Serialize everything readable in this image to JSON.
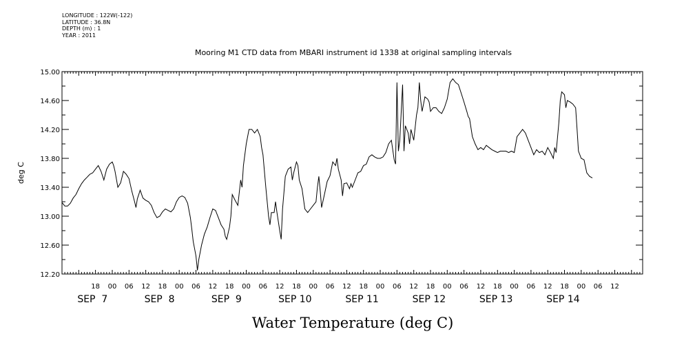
{
  "header": {
    "lines": [
      "LONGITUDE : 122W(-122)",
      "LATITUDE : 36.8N",
      "DEPTH (m) : 1",
      "YEAR : 2011"
    ]
  },
  "chart_data": {
    "type": "line",
    "title": "Mooring M1 CTD data from MBARI instrument id 1338 at original sampling intervals",
    "main_title": "Water Temperature (deg C)",
    "ylabel": "deg C",
    "ylim": [
      12.2,
      15.0
    ],
    "yticks": [
      "12.20",
      "12.60",
      "13.00",
      "13.40",
      "13.80",
      "14.20",
      "14.60",
      "15.00"
    ],
    "x_unit": "hours since SEP 7 00:00",
    "xlim": [
      -18,
      190
    ],
    "hour_ticks": [
      {
        "t": -6,
        "label": "18"
      },
      {
        "t": 0,
        "label": "00"
      },
      {
        "t": 6,
        "label": "06"
      },
      {
        "t": 12,
        "label": "12"
      },
      {
        "t": 18,
        "label": "18"
      },
      {
        "t": 24,
        "label": "00"
      },
      {
        "t": 30,
        "label": "06"
      },
      {
        "t": 36,
        "label": "12"
      },
      {
        "t": 42,
        "label": "18"
      },
      {
        "t": 48,
        "label": "00"
      },
      {
        "t": 54,
        "label": "06"
      },
      {
        "t": 60,
        "label": "12"
      },
      {
        "t": 66,
        "label": "18"
      },
      {
        "t": 72,
        "label": "00"
      },
      {
        "t": 78,
        "label": "06"
      },
      {
        "t": 84,
        "label": "12"
      },
      {
        "t": 90,
        "label": "18"
      },
      {
        "t": 96,
        "label": "00"
      },
      {
        "t": 102,
        "label": "06"
      },
      {
        "t": 108,
        "label": "12"
      },
      {
        "t": 114,
        "label": "18"
      },
      {
        "t": 120,
        "label": "00"
      },
      {
        "t": 126,
        "label": "06"
      },
      {
        "t": 132,
        "label": "12"
      },
      {
        "t": 138,
        "label": "18"
      },
      {
        "t": 144,
        "label": "00"
      },
      {
        "t": 150,
        "label": "06"
      },
      {
        "t": 156,
        "label": "12"
      },
      {
        "t": 162,
        "label": "18"
      },
      {
        "t": 168,
        "label": "00"
      },
      {
        "t": 174,
        "label": "06"
      },
      {
        "t": 180,
        "label": "12"
      }
    ],
    "day_labels": [
      {
        "t": -12,
        "label": "SEP  7"
      },
      {
        "t": 12,
        "label": "SEP  8"
      },
      {
        "t": 36,
        "label": "SEP  9"
      },
      {
        "t": 60,
        "label": "SEP 10"
      },
      {
        "t": 84,
        "label": "SEP 11"
      },
      {
        "t": 108,
        "label": "SEP 12"
      },
      {
        "t": 132,
        "label": "SEP 13"
      },
      {
        "t": 156,
        "label": "SEP 14"
      }
    ],
    "series": [
      {
        "points": [
          [
            -18,
            13.19
          ],
          [
            -17,
            13.14
          ],
          [
            -16,
            13.14
          ],
          [
            -15,
            13.18
          ],
          [
            -14,
            13.25
          ],
          [
            -13,
            13.3
          ],
          [
            -12,
            13.38
          ],
          [
            -11,
            13.45
          ],
          [
            -10,
            13.5
          ],
          [
            -9,
            13.54
          ],
          [
            -8,
            13.58
          ],
          [
            -7,
            13.6
          ],
          [
            -6,
            13.65
          ],
          [
            -5,
            13.7
          ],
          [
            -4,
            13.62
          ],
          [
            -3,
            13.5
          ],
          [
            -2,
            13.65
          ],
          [
            -1,
            13.72
          ],
          [
            0,
            13.75
          ],
          [
            0.5,
            13.7
          ],
          [
            1,
            13.62
          ],
          [
            2,
            13.4
          ],
          [
            3,
            13.46
          ],
          [
            4,
            13.62
          ],
          [
            5,
            13.58
          ],
          [
            6,
            13.52
          ],
          [
            7,
            13.35
          ],
          [
            8,
            13.2
          ],
          [
            8.5,
            13.12
          ],
          [
            9,
            13.24
          ],
          [
            10,
            13.36
          ],
          [
            11,
            13.25
          ],
          [
            12,
            13.22
          ],
          [
            13,
            13.2
          ],
          [
            14,
            13.15
          ],
          [
            15,
            13.05
          ],
          [
            16,
            12.98
          ],
          [
            17,
            13.0
          ],
          [
            18,
            13.06
          ],
          [
            19,
            13.1
          ],
          [
            20,
            13.08
          ],
          [
            21,
            13.06
          ],
          [
            22,
            13.1
          ],
          [
            23,
            13.2
          ],
          [
            24,
            13.26
          ],
          [
            25,
            13.28
          ],
          [
            26,
            13.26
          ],
          [
            27,
            13.18
          ],
          [
            28,
            12.98
          ],
          [
            28.5,
            12.82
          ],
          [
            29,
            12.65
          ],
          [
            29.5,
            12.55
          ],
          [
            30,
            12.45
          ],
          [
            30.5,
            12.25
          ],
          [
            31,
            12.4
          ],
          [
            32,
            12.6
          ],
          [
            33,
            12.75
          ],
          [
            34,
            12.85
          ],
          [
            35,
            12.98
          ],
          [
            36,
            13.1
          ],
          [
            37,
            13.08
          ],
          [
            38,
            12.98
          ],
          [
            39,
            12.88
          ],
          [
            40,
            12.82
          ],
          [
            40.5,
            12.72
          ],
          [
            41,
            12.68
          ],
          [
            42,
            12.85
          ],
          [
            42.5,
            13.0
          ],
          [
            43,
            13.3
          ],
          [
            44,
            13.22
          ],
          [
            45,
            13.15
          ],
          [
            46,
            13.5
          ],
          [
            46.5,
            13.4
          ],
          [
            47,
            13.7
          ],
          [
            48,
            14.0
          ],
          [
            49,
            14.2
          ],
          [
            50,
            14.2
          ],
          [
            51,
            14.15
          ],
          [
            52,
            14.2
          ],
          [
            53,
            14.1
          ],
          [
            53.5,
            13.95
          ],
          [
            54,
            13.85
          ],
          [
            55,
            13.4
          ],
          [
            56,
            13.0
          ],
          [
            56.5,
            12.88
          ],
          [
            57,
            13.05
          ],
          [
            58,
            13.05
          ],
          [
            58.5,
            13.2
          ],
          [
            59,
            13.05
          ],
          [
            60,
            12.8
          ],
          [
            60.5,
            12.68
          ],
          [
            61,
            13.1
          ],
          [
            62,
            13.55
          ],
          [
            63,
            13.65
          ],
          [
            64,
            13.68
          ],
          [
            64.5,
            13.5
          ],
          [
            65,
            13.6
          ],
          [
            66,
            13.75
          ],
          [
            66.5,
            13.7
          ],
          [
            67,
            13.5
          ],
          [
            68,
            13.38
          ],
          [
            69,
            13.1
          ],
          [
            70,
            13.05
          ],
          [
            71,
            13.1
          ],
          [
            72,
            13.15
          ],
          [
            73,
            13.2
          ],
          [
            73.5,
            13.4
          ],
          [
            74,
            13.55
          ],
          [
            74.5,
            13.35
          ],
          [
            75,
            13.12
          ],
          [
            76,
            13.3
          ],
          [
            77,
            13.48
          ],
          [
            78,
            13.56
          ],
          [
            79,
            13.75
          ],
          [
            80,
            13.7
          ],
          [
            80.5,
            13.8
          ],
          [
            81,
            13.65
          ],
          [
            82,
            13.5
          ],
          [
            82.5,
            13.28
          ],
          [
            83,
            13.45
          ],
          [
            84,
            13.46
          ],
          [
            85,
            13.38
          ],
          [
            85.5,
            13.45
          ],
          [
            86,
            13.4
          ],
          [
            87,
            13.5
          ],
          [
            88,
            13.6
          ],
          [
            89,
            13.62
          ],
          [
            90,
            13.7
          ],
          [
            91,
            13.72
          ],
          [
            92,
            13.82
          ],
          [
            93,
            13.85
          ],
          [
            94,
            13.82
          ],
          [
            95,
            13.8
          ],
          [
            96,
            13.8
          ],
          [
            97,
            13.82
          ],
          [
            98,
            13.88
          ],
          [
            99,
            14.0
          ],
          [
            100,
            14.05
          ],
          [
            101,
            13.78
          ],
          [
            101.5,
            13.72
          ],
          [
            102,
            14.85
          ],
          [
            102.5,
            13.9
          ],
          [
            103,
            14.05
          ],
          [
            104,
            14.82
          ],
          [
            104.5,
            13.9
          ],
          [
            105,
            14.25
          ],
          [
            106,
            14.15
          ],
          [
            106.5,
            14.0
          ],
          [
            107,
            14.2
          ],
          [
            108,
            14.05
          ],
          [
            109,
            14.4
          ],
          [
            109.5,
            14.5
          ],
          [
            110,
            14.85
          ],
          [
            110.5,
            14.6
          ],
          [
            111,
            14.45
          ],
          [
            112,
            14.65
          ],
          [
            113,
            14.62
          ],
          [
            113.5,
            14.58
          ],
          [
            114,
            14.45
          ],
          [
            115,
            14.5
          ],
          [
            116,
            14.5
          ],
          [
            117,
            14.45
          ],
          [
            118,
            14.42
          ],
          [
            119,
            14.5
          ],
          [
            120,
            14.62
          ],
          [
            121,
            14.85
          ],
          [
            122,
            14.9
          ],
          [
            123,
            14.85
          ],
          [
            124,
            14.82
          ],
          [
            125,
            14.7
          ],
          [
            126,
            14.58
          ],
          [
            127,
            14.45
          ],
          [
            127.5,
            14.38
          ],
          [
            128,
            14.35
          ],
          [
            129,
            14.1
          ],
          [
            130,
            14.0
          ],
          [
            131,
            13.92
          ],
          [
            132,
            13.95
          ],
          [
            133,
            13.92
          ],
          [
            134,
            13.98
          ],
          [
            135,
            13.95
          ],
          [
            136,
            13.92
          ],
          [
            137,
            13.9
          ],
          [
            138,
            13.88
          ],
          [
            139,
            13.9
          ],
          [
            140,
            13.9
          ],
          [
            141,
            13.9
          ],
          [
            142,
            13.88
          ],
          [
            143,
            13.9
          ],
          [
            144,
            13.88
          ],
          [
            145,
            14.1
          ],
          [
            146,
            14.15
          ],
          [
            147,
            14.2
          ],
          [
            148,
            14.15
          ],
          [
            149,
            14.05
          ],
          [
            150,
            13.95
          ],
          [
            151,
            13.85
          ],
          [
            152,
            13.92
          ],
          [
            153,
            13.88
          ],
          [
            154,
            13.9
          ],
          [
            155,
            13.85
          ],
          [
            156,
            13.95
          ],
          [
            157,
            13.88
          ],
          [
            158,
            13.8
          ],
          [
            158.5,
            13.95
          ],
          [
            159,
            13.88
          ],
          [
            160,
            14.3
          ],
          [
            160.5,
            14.6
          ],
          [
            161,
            14.72
          ],
          [
            162,
            14.68
          ],
          [
            162.5,
            14.5
          ],
          [
            163,
            14.6
          ],
          [
            164,
            14.58
          ],
          [
            165,
            14.55
          ],
          [
            166,
            14.5
          ],
          [
            166.5,
            14.2
          ],
          [
            167,
            13.9
          ],
          [
            168,
            13.8
          ],
          [
            169,
            13.78
          ],
          [
            170,
            13.6
          ],
          [
            171,
            13.55
          ],
          [
            172,
            13.53
          ]
        ]
      }
    ]
  }
}
